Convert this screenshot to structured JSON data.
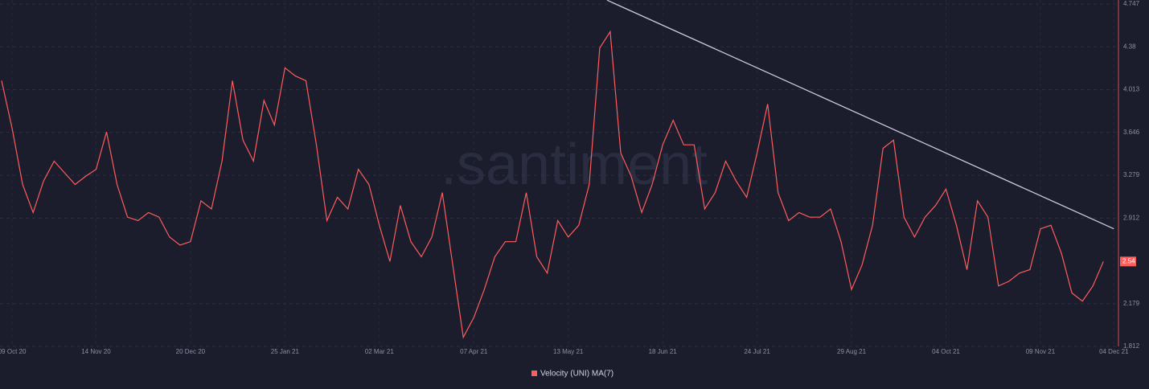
{
  "chart_data": {
    "type": "line",
    "watermark": ".santiment",
    "categories": [
      null,
      "09 Oct 20",
      null,
      null,
      null,
      null,
      null,
      null,
      null,
      "14 Nov 20",
      null,
      null,
      null,
      null,
      null,
      null,
      null,
      null,
      "20 Dec 20",
      null,
      null,
      null,
      null,
      null,
      null,
      null,
      null,
      "25 Jan 21",
      null,
      null,
      null,
      null,
      null,
      null,
      null,
      null,
      "02 Mar 21",
      null,
      null,
      null,
      null,
      null,
      null,
      null,
      null,
      "07 Apr 21",
      null,
      null,
      null,
      null,
      null,
      null,
      null,
      null,
      "13 May 21",
      null,
      null,
      null,
      null,
      null,
      null,
      null,
      null,
      "18 Jun 21",
      null,
      null,
      null,
      null,
      null,
      null,
      null,
      null,
      "24 Jul 21",
      null,
      null,
      null,
      null,
      null,
      null,
      null,
      null,
      "29 Aug 21",
      null,
      null,
      null,
      null,
      null,
      null,
      null,
      null,
      "04 Oct 21",
      null,
      null,
      null,
      null,
      null,
      null,
      null,
      null,
      "09 Nov 21",
      null,
      null,
      null,
      null,
      null,
      null,
      "04 Dec 21"
    ],
    "series": [
      {
        "name": "Velocity (UNI) MA(7)",
        "color": "#ff5c5c",
        "values": [
          4.09,
          3.68,
          3.2,
          2.96,
          3.23,
          3.4,
          3.3,
          3.2,
          3.27,
          3.33,
          3.65,
          3.2,
          2.92,
          2.89,
          2.96,
          2.92,
          2.75,
          2.68,
          2.71,
          3.06,
          2.99,
          3.4,
          4.09,
          3.58,
          3.4,
          3.92,
          3.71,
          4.2,
          4.13,
          4.09,
          3.54,
          2.89,
          3.09,
          2.99,
          3.33,
          3.2,
          2.85,
          2.54,
          3.02,
          2.71,
          2.58,
          2.75,
          3.13,
          2.51,
          1.89,
          2.06,
          2.3,
          2.58,
          2.71,
          2.71,
          3.13,
          2.58,
          2.44,
          2.89,
          2.75,
          2.85,
          3.2,
          4.37,
          4.51,
          3.47,
          3.27,
          2.96,
          3.2,
          3.54,
          3.75,
          3.54,
          3.54,
          2.99,
          3.13,
          3.4,
          3.23,
          3.09,
          3.47,
          3.89,
          3.13,
          2.89,
          2.96,
          2.92,
          2.92,
          2.99,
          2.71,
          2.3,
          2.51,
          2.85,
          3.51,
          3.58,
          2.92,
          2.75,
          2.92,
          3.02,
          3.16,
          2.85,
          2.47,
          3.06,
          2.92,
          2.33,
          2.37,
          2.44,
          2.47,
          2.82,
          2.85,
          2.61,
          2.27,
          2.2,
          2.33,
          2.54,
          null
        ]
      }
    ],
    "current_value": 2.54,
    "trendline": {
      "color": "#c9cbe0",
      "x": [
        57.7,
        106
      ],
      "values": [
        4.78,
        2.82
      ]
    },
    "ylim": [
      1.812,
      4.747
    ],
    "yticks": [
      1.812,
      2.179,
      2.912,
      3.279,
      3.646,
      4.013,
      4.38,
      4.747
    ],
    "grid": true
  }
}
